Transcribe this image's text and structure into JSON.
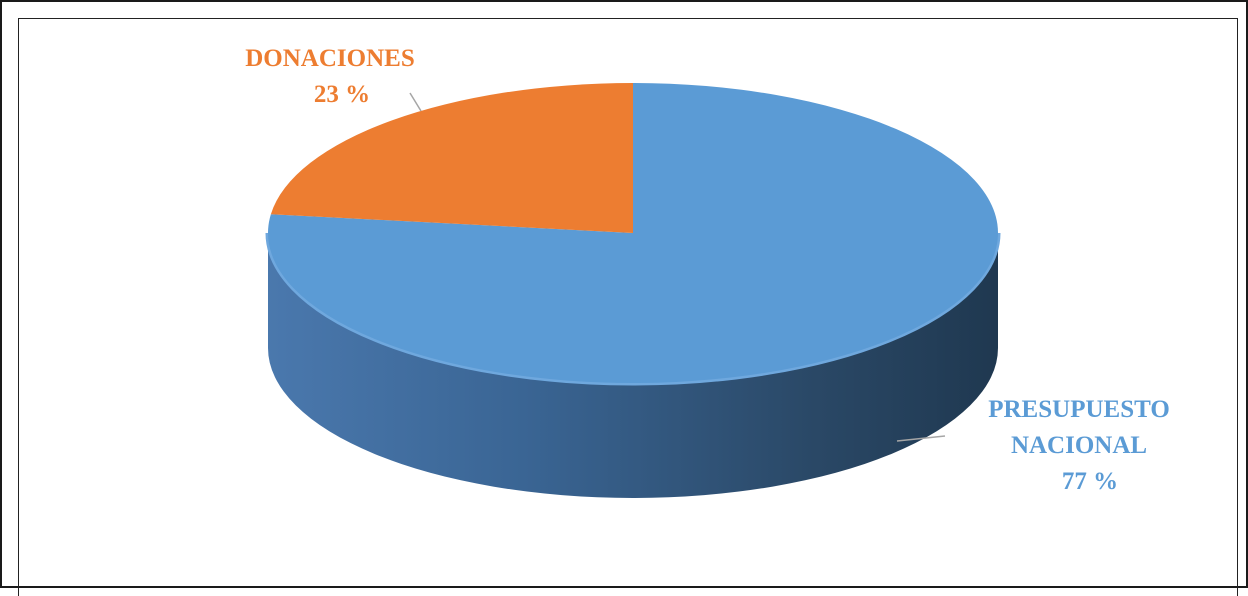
{
  "chart_data": {
    "type": "pie",
    "style": "3d",
    "slices": [
      {
        "label": "PRESUPUESTO NACIONAL",
        "value": 77,
        "display": "77 %",
        "color": "#5B9BD5"
      },
      {
        "label": "DONACIONES",
        "value": 23,
        "display": "23 %",
        "color": "#ED7D31"
      }
    ]
  },
  "labels": {
    "donaciones_name": "DONACIONES",
    "donaciones_value": "23 %",
    "presupuesto_line1": "PRESUPUESTO",
    "presupuesto_line2": "NACIONAL",
    "presupuesto_value": "77 %"
  }
}
